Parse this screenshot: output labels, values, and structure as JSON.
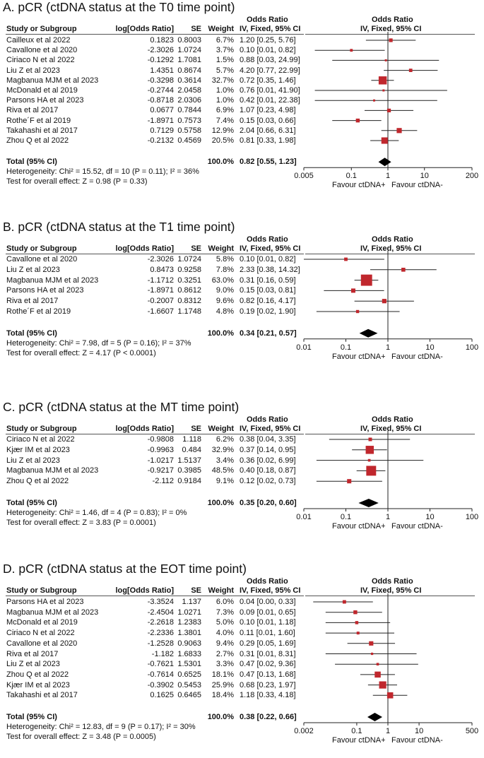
{
  "colors": {
    "marker": "#c0272d",
    "diamond": "#000000",
    "line": "#222222"
  },
  "headers": {
    "study": "Study or Subgroup",
    "log_or": "log[Odds Ratio]",
    "se": "SE",
    "weight": "Weight",
    "or_top": "Odds Ratio",
    "or_sub": "IV, Fixed, 95% CI",
    "plot_top": "Odds Ratio",
    "plot_sub": "IV, Fixed, 95% CI"
  },
  "favour_left": "Favour ctDNA+",
  "favour_right": "Favour ctDNA-",
  "total_label": "Total (95% CI)",
  "chart_data": [
    {
      "type": "forest",
      "title": "A. pCR (ctDNA status at the T0 time point)",
      "xscale": "log",
      "ticks": [
        "0.005",
        "0.1",
        "1",
        "10",
        "200"
      ],
      "tick_values": [
        0.005,
        0.1,
        1,
        10,
        200
      ],
      "studies": [
        {
          "name": "Cailleux et al 2022",
          "log_or": "0.1823",
          "se": "0.8003",
          "weight": "6.7%",
          "ci_text": "1.20 [0.25, 5.76]",
          "or": 1.2,
          "lo": 0.25,
          "hi": 5.76,
          "w": 6.7
        },
        {
          "name": "Cavallone et al 2020",
          "log_or": "-2.3026",
          "se": "1.0724",
          "weight": "3.7%",
          "ci_text": "0.10 [0.01, 0.82]",
          "or": 0.1,
          "lo": 0.01,
          "hi": 0.82,
          "w": 3.7
        },
        {
          "name": "Ciriaco N et al 2022",
          "log_or": "-0.1292",
          "se": "1.7081",
          "weight": "1.5%",
          "ci_text": "0.88 [0.03, 24.99]",
          "or": 0.88,
          "lo": 0.03,
          "hi": 24.99,
          "w": 1.5
        },
        {
          "name": "Liu Z et al 2023",
          "log_or": "1.4351",
          "se": "0.8674",
          "weight": "5.7%",
          "ci_text": "4.20 [0.77, 22.99]",
          "or": 4.2,
          "lo": 0.77,
          "hi": 22.99,
          "w": 5.7
        },
        {
          "name": "Magbanua MJM et al 2023",
          "log_or": "-0.3298",
          "se": "0.3614",
          "weight": "32.7%",
          "ci_text": "0.72 [0.35, 1.46]",
          "or": 0.72,
          "lo": 0.35,
          "hi": 1.46,
          "w": 32.7
        },
        {
          "name": "McDonald et al 2019",
          "log_or": "-0.2744",
          "se": "2.0458",
          "weight": "1.0%",
          "ci_text": "0.76 [0.01, 41.90]",
          "or": 0.76,
          "lo": 0.01,
          "hi": 41.9,
          "w": 1.0
        },
        {
          "name": "Parsons HA et al 2023",
          "log_or": "-0.8718",
          "se": "2.0306",
          "weight": "1.0%",
          "ci_text": "0.42 [0.01, 22.38]",
          "or": 0.42,
          "lo": 0.01,
          "hi": 22.38,
          "w": 1.0
        },
        {
          "name": "Riva et al 2017",
          "log_or": "0.0677",
          "se": "0.7844",
          "weight": "6.9%",
          "ci_text": "1.07 [0.23, 4.98]",
          "or": 1.07,
          "lo": 0.23,
          "hi": 4.98,
          "w": 6.9
        },
        {
          "name": "Rothe´F et al 2019",
          "log_or": "-1.8971",
          "se": "0.7573",
          "weight": "7.4%",
          "ci_text": "0.15 [0.03, 0.66]",
          "or": 0.15,
          "lo": 0.03,
          "hi": 0.66,
          "w": 7.4
        },
        {
          "name": "Takahashi et al 2017",
          "log_or": "0.7129",
          "se": "0.5758",
          "weight": "12.9%",
          "ci_text": "2.04 [0.66, 6.31]",
          "or": 2.04,
          "lo": 0.66,
          "hi": 6.31,
          "w": 12.9
        },
        {
          "name": "Zhou Q et al 2022",
          "log_or": "-0.2132",
          "se": "0.4569",
          "weight": "20.5%",
          "ci_text": "0.81 [0.33, 1.98]",
          "or": 0.81,
          "lo": 0.33,
          "hi": 1.98,
          "w": 20.5
        }
      ],
      "total": {
        "weight": "100.0%",
        "ci_text": "0.82 [0.55, 1.23]",
        "or": 0.82,
        "lo": 0.55,
        "hi": 1.23
      },
      "heterogeneity": "Heterogeneity: Chi² = 15.52, df = 10 (P = 0.11); I² = 36%",
      "overall": "Test for overall effect: Z = 0.98 (P = 0.33)"
    },
    {
      "type": "forest",
      "title": "B. pCR (ctDNA status at the T1 time point)",
      "xscale": "log",
      "ticks": [
        "0.01",
        "0.1",
        "1",
        "10",
        "100"
      ],
      "tick_values": [
        0.01,
        0.1,
        1,
        10,
        100
      ],
      "studies": [
        {
          "name": "Cavallone et al 2020",
          "log_or": "-2.3026",
          "se": "1.0724",
          "weight": "5.8%",
          "ci_text": "0.10 [0.01, 0.82]",
          "or": 0.1,
          "lo": 0.01,
          "hi": 0.82,
          "w": 5.8
        },
        {
          "name": "Liu Z et al 2023",
          "log_or": "0.8473",
          "se": "0.9258",
          "weight": "7.8%",
          "ci_text": "2.33 [0.38, 14.32]",
          "or": 2.33,
          "lo": 0.38,
          "hi": 14.32,
          "w": 7.8
        },
        {
          "name": "Magbanua MJM et al 2023",
          "log_or": "-1.1712",
          "se": "0.3251",
          "weight": "63.0%",
          "ci_text": "0.31 [0.16, 0.59]",
          "or": 0.31,
          "lo": 0.16,
          "hi": 0.59,
          "w": 63.0
        },
        {
          "name": "Parsons HA et al 2023",
          "log_or": "-1.8971",
          "se": "0.8612",
          "weight": "9.0%",
          "ci_text": "0.15 [0.03, 0.81]",
          "or": 0.15,
          "lo": 0.03,
          "hi": 0.81,
          "w": 9.0
        },
        {
          "name": "Riva et al 2017",
          "log_or": "-0.2007",
          "se": "0.8312",
          "weight": "9.6%",
          "ci_text": "0.82 [0.16, 4.17]",
          "or": 0.82,
          "lo": 0.16,
          "hi": 4.17,
          "w": 9.6
        },
        {
          "name": "Rothe´F et al 2019",
          "log_or": "-1.6607",
          "se": "1.1748",
          "weight": "4.8%",
          "ci_text": "0.19 [0.02, 1.90]",
          "or": 0.19,
          "lo": 0.02,
          "hi": 1.9,
          "w": 4.8
        }
      ],
      "total": {
        "weight": "100.0%",
        "ci_text": "0.34 [0.21, 0.57]",
        "or": 0.34,
        "lo": 0.21,
        "hi": 0.57
      },
      "heterogeneity": "Heterogeneity: Chi² = 7.98, df = 5 (P = 0.16); I² = 37%",
      "overall": "Test for overall effect: Z = 4.17 (P < 0.0001)"
    },
    {
      "type": "forest",
      "title": "C. pCR (ctDNA status at the MT time point)",
      "xscale": "log",
      "ticks": [
        "0.01",
        "0.1",
        "1",
        "10",
        "100"
      ],
      "tick_values": [
        0.01,
        0.1,
        1,
        10,
        100
      ],
      "studies": [
        {
          "name": "Ciriaco N et al 2022",
          "log_or": "-0.9808",
          "se": "1.118",
          "weight": "6.2%",
          "ci_text": "0.38 [0.04, 3.35]",
          "or": 0.38,
          "lo": 0.04,
          "hi": 3.35,
          "w": 6.2
        },
        {
          "name": "Kjær IM et al 2023",
          "log_or": "-0.9963",
          "se": "0.484",
          "weight": "32.9%",
          "ci_text": "0.37 [0.14, 0.95]",
          "or": 0.37,
          "lo": 0.14,
          "hi": 0.95,
          "w": 32.9
        },
        {
          "name": "Liu Z et al 2023",
          "log_or": "-1.0217",
          "se": "1.5137",
          "weight": "3.4%",
          "ci_text": "0.36 [0.02, 6.99]",
          "or": 0.36,
          "lo": 0.02,
          "hi": 6.99,
          "w": 3.4
        },
        {
          "name": "Magbanua MJM et al 2023",
          "log_or": "-0.9217",
          "se": "0.3985",
          "weight": "48.5%",
          "ci_text": "0.40 [0.18, 0.87]",
          "or": 0.4,
          "lo": 0.18,
          "hi": 0.87,
          "w": 48.5
        },
        {
          "name": "Zhou Q et al 2022",
          "log_or": "-2.112",
          "se": "0.9184",
          "weight": "9.1%",
          "ci_text": "0.12 [0.02, 0.73]",
          "or": 0.12,
          "lo": 0.02,
          "hi": 0.73,
          "w": 9.1
        }
      ],
      "total": {
        "weight": "100.0%",
        "ci_text": "0.35 [0.20, 0.60]",
        "or": 0.35,
        "lo": 0.2,
        "hi": 0.6
      },
      "heterogeneity": "Heterogeneity: Chi² = 1.46, df = 4 (P = 0.83); I² = 0%",
      "overall": "Test for overall effect: Z = 3.83 (P = 0.0001)"
    },
    {
      "type": "forest",
      "title": "D. pCR (ctDNA status at the EOT time point)",
      "xscale": "log",
      "ticks": [
        "0.002",
        "0.1",
        "1",
        "10",
        "500"
      ],
      "tick_values": [
        0.002,
        0.1,
        1,
        10,
        500
      ],
      "studies": [
        {
          "name": "Parsons HA et al 2023",
          "log_or": "-3.3524",
          "se": "1.137",
          "weight": "6.0%",
          "ci_text": "0.04 [0.00, 0.33]",
          "or": 0.04,
          "lo": 0.004,
          "hi": 0.33,
          "w": 6.0
        },
        {
          "name": "Magbanua MJM et al 2023",
          "log_or": "-2.4504",
          "se": "1.0271",
          "weight": "7.3%",
          "ci_text": "0.09 [0.01, 0.65]",
          "or": 0.09,
          "lo": 0.01,
          "hi": 0.65,
          "w": 7.3
        },
        {
          "name": "McDonald et al 2019",
          "log_or": "-2.2618",
          "se": "1.2383",
          "weight": "5.0%",
          "ci_text": "0.10 [0.01, 1.18]",
          "or": 0.1,
          "lo": 0.01,
          "hi": 1.18,
          "w": 5.0
        },
        {
          "name": "Ciriaco N et al 2022",
          "log_or": "-2.2336",
          "se": "1.3801",
          "weight": "4.0%",
          "ci_text": "0.11 [0.01, 1.60]",
          "or": 0.11,
          "lo": 0.01,
          "hi": 1.6,
          "w": 4.0
        },
        {
          "name": "Cavallone et al 2020",
          "log_or": "-1.2528",
          "se": "0.9063",
          "weight": "9.4%",
          "ci_text": "0.29 [0.05, 1.69]",
          "or": 0.29,
          "lo": 0.05,
          "hi": 1.69,
          "w": 9.4
        },
        {
          "name": "Riva et al 2017",
          "log_or": "-1.182",
          "se": "1.6833",
          "weight": "2.7%",
          "ci_text": "0.31 [0.01, 8.31]",
          "or": 0.31,
          "lo": 0.01,
          "hi": 8.31,
          "w": 2.7
        },
        {
          "name": "Liu Z et al 2023",
          "log_or": "-0.7621",
          "se": "1.5301",
          "weight": "3.3%",
          "ci_text": "0.47 [0.02, 9.36]",
          "or": 0.47,
          "lo": 0.02,
          "hi": 9.36,
          "w": 3.3
        },
        {
          "name": "Zhou Q et al 2022",
          "log_or": "-0.7614",
          "se": "0.6525",
          "weight": "18.1%",
          "ci_text": "0.47 [0.13, 1.68]",
          "or": 0.47,
          "lo": 0.13,
          "hi": 1.68,
          "w": 18.1
        },
        {
          "name": "Kjær IM et al 2023",
          "log_or": "-0.3902",
          "se": "0.5453",
          "weight": "25.9%",
          "ci_text": "0.68 [0.23, 1.97]",
          "or": 0.68,
          "lo": 0.23,
          "hi": 1.97,
          "w": 25.9
        },
        {
          "name": "Takahashi et al 2017",
          "log_or": "0.1625",
          "se": "0.6465",
          "weight": "18.4%",
          "ci_text": "1.18 [0.33, 4.18]",
          "or": 1.18,
          "lo": 0.33,
          "hi": 4.18,
          "w": 18.4
        }
      ],
      "total": {
        "weight": "100.0%",
        "ci_text": "0.38 [0.22, 0.66]",
        "or": 0.38,
        "lo": 0.22,
        "hi": 0.66
      },
      "heterogeneity": "Heterogeneity: Chi² = 12.83, df = 9 (P = 0.17); I² = 30%",
      "overall": "Test for overall effect: Z = 3.48 (P = 0.0005)"
    }
  ]
}
